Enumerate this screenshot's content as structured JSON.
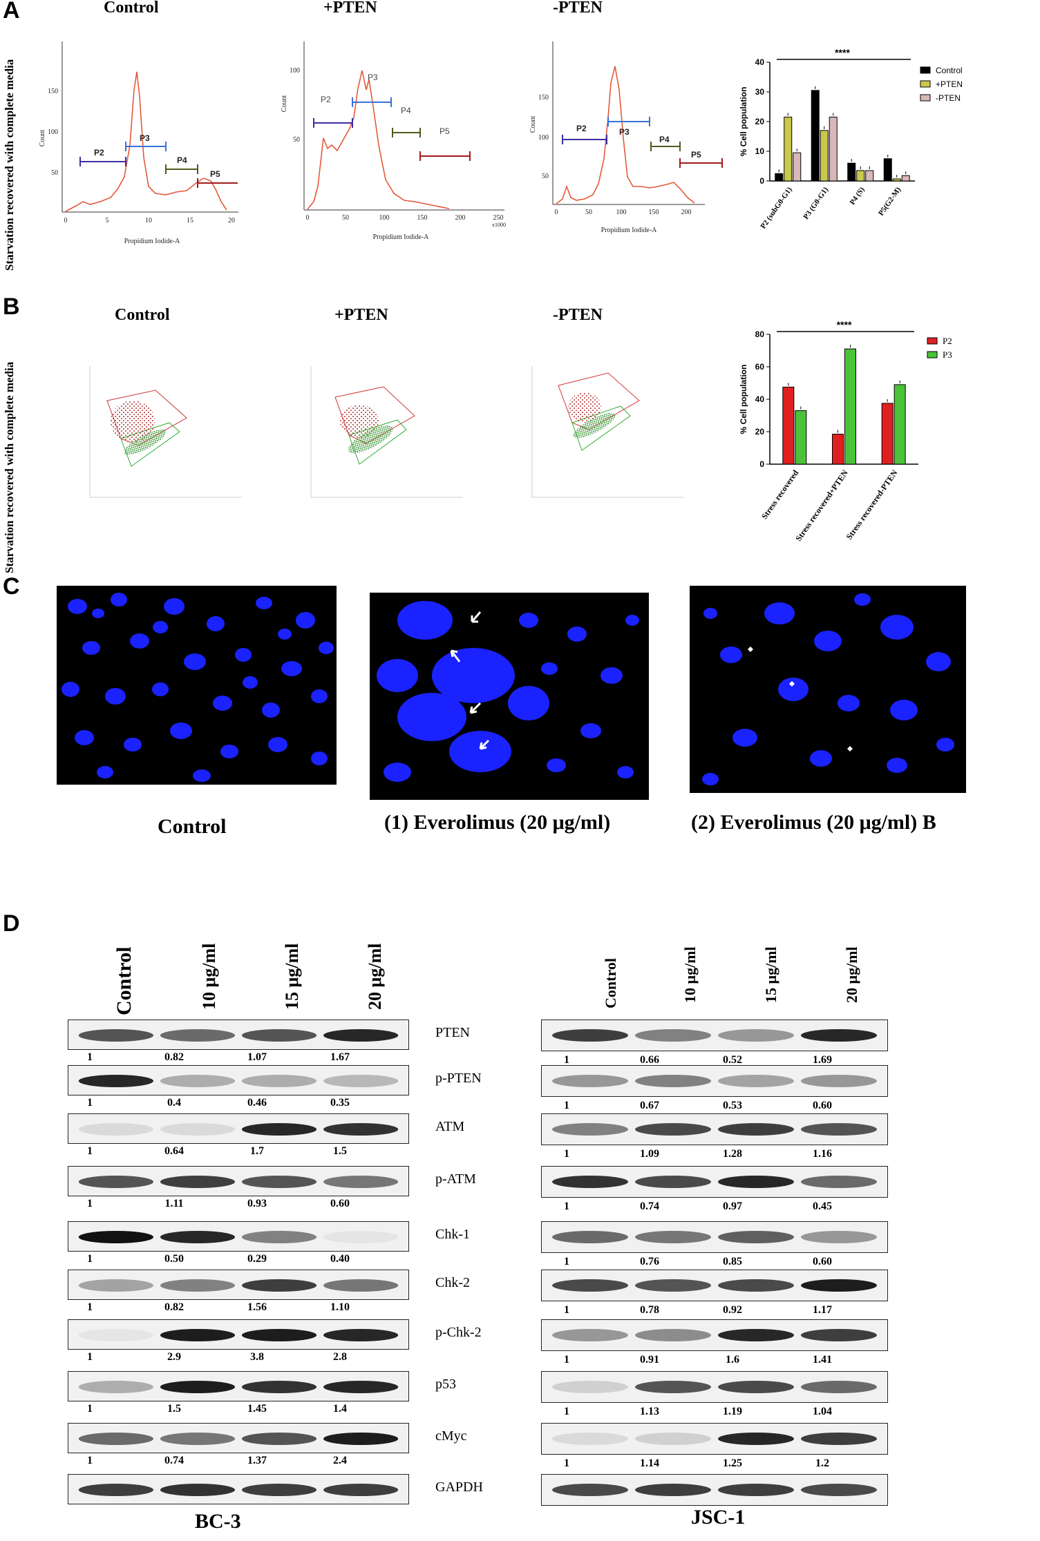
{
  "panels": {
    "A": "A",
    "B": "B",
    "C": "C",
    "D": "D"
  },
  "panelA": {
    "side_label": "Starvation recovered with complete media",
    "histograms": [
      {
        "title": "Control",
        "ylabel": "Count",
        "xlabel": "Propidium Iodide-A",
        "xticks": [
          "0",
          "5",
          "10",
          "15",
          "20"
        ],
        "yticks": [
          "50",
          "100",
          "150"
        ],
        "x_unit": "",
        "gates": [
          "P2",
          "P3",
          "P4",
          "P5"
        ]
      },
      {
        "title": "+PTEN",
        "ylabel": "Count",
        "xlabel": "Propidium Iodide-A",
        "xticks": [
          "0",
          "50",
          "100",
          "150",
          "200",
          "250"
        ],
        "yticks": [
          "50",
          "100"
        ],
        "x_unit": "x1000",
        "gates": [
          "P2",
          "P3",
          "P4",
          "P5"
        ]
      },
      {
        "title": "-PTEN",
        "ylabel": "Count",
        "xlabel": "Propidium Iodide-A",
        "xticks": [
          "0",
          "50",
          "100",
          "150",
          "200"
        ],
        "yticks": [
          "50",
          "100",
          "150"
        ],
        "x_unit": "",
        "gates": [
          "P2",
          "P3",
          "P4",
          "P5"
        ]
      }
    ],
    "colors": {
      "p2": "#3b2fa0",
      "p3": "#3a6fd8",
      "p4": "#4d5a1a",
      "p5": "#a11a1a",
      "trace": "#e4583a"
    }
  },
  "panelB": {
    "side_label": "Starvation recovered with complete media",
    "titles": [
      "Control",
      "+PTEN",
      "-PTEN"
    ]
  },
  "panelC": {
    "captions": [
      "Control",
      "(1) Everolimus (20 μg/ml)",
      "(2) Everolimus (20 μg/ml) B"
    ]
  },
  "panelD": {
    "headers": [
      "Control",
      "10 μg/ml",
      "15 μg/ml",
      "20 μg/ml"
    ],
    "rows": [
      {
        "label": "PTEN",
        "left": [
          "1",
          "0.82",
          "1.07",
          "1.67"
        ],
        "right": [
          "1",
          "0.66",
          "0.52",
          "1.69"
        ]
      },
      {
        "label": "p-PTEN",
        "left": [
          "1",
          "0.4",
          "0.46",
          "0.35"
        ],
        "right": [
          "1",
          "0.67",
          "0.53",
          "0.60"
        ]
      },
      {
        "label": "ATM",
        "left": [
          "1",
          "0.64",
          "1.7",
          "1.5"
        ],
        "right": [
          "1",
          "1.09",
          "1.28",
          "1.16"
        ]
      },
      {
        "label": "p-ATM",
        "left": [
          "1",
          "1.11",
          "0.93",
          "0.60"
        ],
        "right": [
          "1",
          "0.74",
          "0.97",
          "0.45"
        ]
      },
      {
        "label": "Chk-1",
        "left": [
          "1",
          "0.50",
          "0.29",
          "0.40"
        ],
        "right": [
          "1",
          "0.76",
          "0.85",
          "0.60"
        ]
      },
      {
        "label": "Chk-2",
        "left": [
          "1",
          "0.82",
          "1.56",
          "1.10"
        ],
        "right": [
          "1",
          "0.78",
          "0.92",
          "1.17"
        ]
      },
      {
        "label": "p-Chk-2",
        "left": [
          "1",
          "2.9",
          "3.8",
          "2.8"
        ],
        "right": [
          "1",
          "0.91",
          "1.6",
          "1.41"
        ]
      },
      {
        "label": "p53",
        "left": [
          "1",
          "1.5",
          "1.45",
          "1.4"
        ],
        "right": [
          "1",
          "1.13",
          "1.19",
          "1.04"
        ]
      },
      {
        "label": "cMyc",
        "left": [
          "1",
          "0.74",
          "1.37",
          "2.4"
        ],
        "right": [
          "1",
          "1.14",
          "1.25",
          "1.2"
        ]
      },
      {
        "label": "GAPDH",
        "left": [],
        "right": []
      }
    ],
    "left_cell_line": "BC-3",
    "right_cell_line": "JSC-1"
  },
  "chart_data": [
    {
      "type": "bar",
      "categories": [
        "P2 (subG0-G1)",
        "P3 (G0-G1)",
        "P4 (S)",
        "P5(G2-M)"
      ],
      "series": [
        {
          "name": "Control",
          "values": [
            2.5,
            30.5,
            6,
            7.5
          ],
          "color": "#000000"
        },
        {
          "name": "+PTEN",
          "values": [
            21.5,
            17,
            3.5,
            0.7
          ],
          "color": "#c9c94a"
        },
        {
          "name": "-PTEN",
          "values": [
            9.5,
            21.5,
            3.5,
            1.8
          ],
          "color": "#d9b8b8"
        }
      ],
      "ylabel": "% Cell population",
      "ylim": [
        0,
        40
      ],
      "yticks": [
        "0",
        "10",
        "20",
        "30",
        "40"
      ],
      "significance": "****",
      "legend": "right"
    },
    {
      "type": "bar",
      "categories": [
        "Stress recovered",
        "Stress recovered+PTEN",
        "Stress recovered-PTEN"
      ],
      "series": [
        {
          "name": "P2",
          "values": [
            47.5,
            18.5,
            37.5
          ],
          "color": "#e02020"
        },
        {
          "name": "P3",
          "values": [
            33,
            71,
            49
          ],
          "color": "#4cc23a"
        }
      ],
      "ylabel": "% Cell population",
      "ylim": [
        0,
        80
      ],
      "yticks": [
        "0",
        "20",
        "40",
        "60",
        "80"
      ],
      "significance": "****",
      "legend": "right"
    }
  ]
}
